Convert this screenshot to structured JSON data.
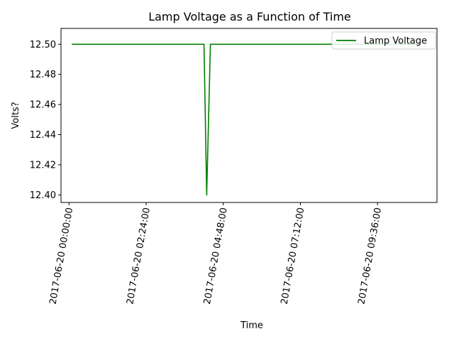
{
  "chart_data": {
    "type": "line",
    "title": "Lamp Voltage as a Function of Time",
    "xlabel": "Time",
    "ylabel": "Volts?",
    "x_format": "datetime",
    "xlim": [
      "2017-06-19 23:45:00",
      "2017-06-20 11:27:00"
    ],
    "ylim": [
      12.395,
      12.5105
    ],
    "xticks": [
      "2017-06-20 00:00:00",
      "2017-06-20 02:24:00",
      "2017-06-20 04:48:00",
      "2017-06-20 07:12:00",
      "2017-06-20 09:36:00"
    ],
    "yticks": [
      "12.40",
      "12.42",
      "12.44",
      "12.46",
      "12.48",
      "12.50"
    ],
    "grid": false,
    "legend_position": "top-right",
    "series": [
      {
        "name": "Lamp Voltage",
        "color": "#008000",
        "x": [
          "2017-06-20 00:05:00",
          "2017-06-20 04:12:00",
          "2017-06-20 04:17:00",
          "2017-06-20 04:24:00",
          "2017-06-20 10:57:00"
        ],
        "y": [
          12.5,
          12.5,
          12.4,
          12.5,
          12.5
        ]
      }
    ]
  }
}
